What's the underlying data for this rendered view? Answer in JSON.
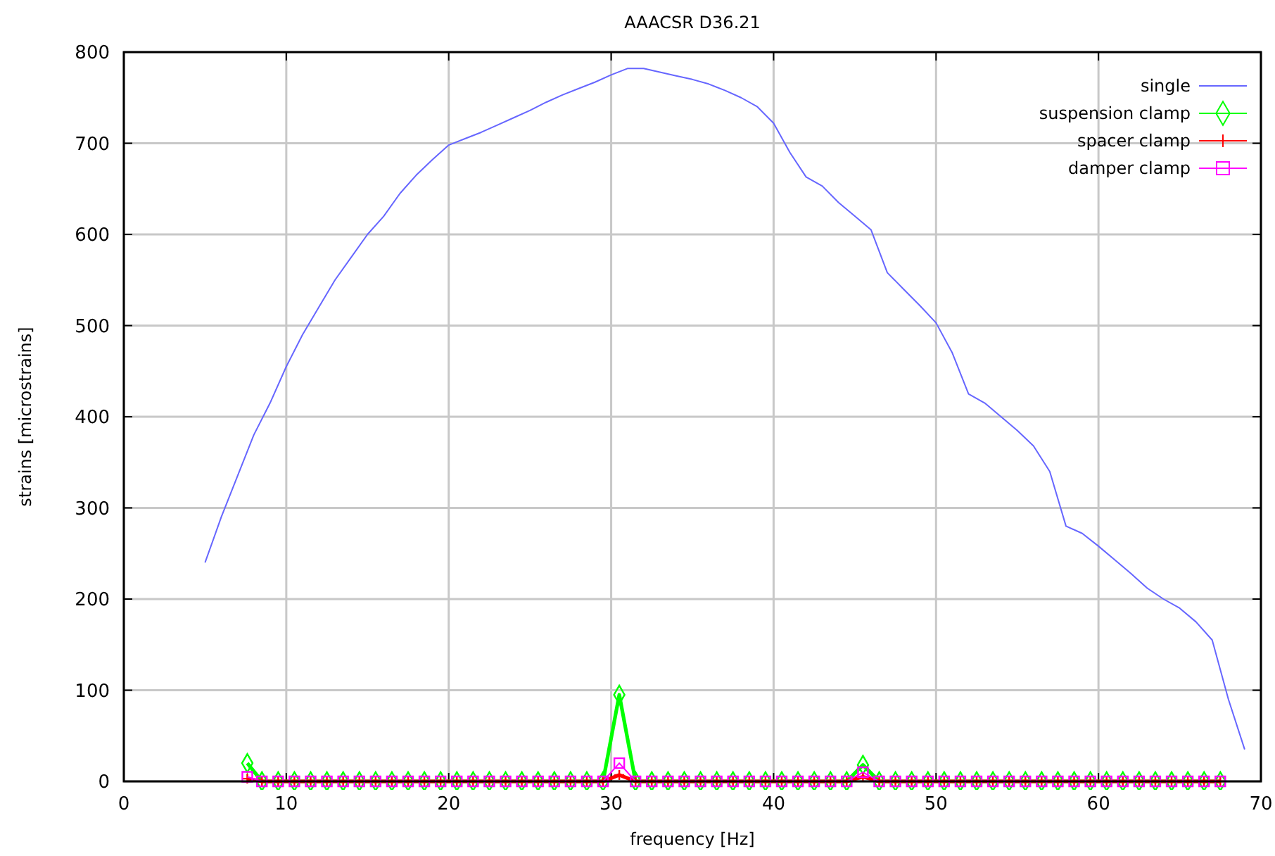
{
  "chart_data": {
    "type": "line",
    "title": "AAACSR D36.21",
    "xlabel": "frequency [Hz]",
    "ylabel": "strains [microstrains]",
    "xlim": [
      0,
      70
    ],
    "xticks": [
      0,
      10,
      20,
      30,
      40,
      50,
      60,
      70
    ],
    "ylim": [
      0,
      800
    ],
    "yticks": [
      0,
      100,
      200,
      300,
      400,
      500,
      600,
      700,
      800
    ],
    "grid": true,
    "legend": "top right",
    "series": [
      {
        "name": "single",
        "color": "#6666ff",
        "marker": "none",
        "x": [
          5,
          6,
          7,
          8,
          9,
          10,
          11,
          12,
          13,
          14,
          15,
          16,
          17,
          18,
          19,
          20,
          21,
          22,
          23,
          24,
          25,
          26,
          27,
          28,
          29,
          30,
          31,
          32,
          33,
          34,
          35,
          36,
          37,
          38,
          39,
          40,
          41,
          42,
          43,
          44,
          45,
          46,
          47,
          48,
          49,
          50,
          51,
          52,
          53,
          54,
          55,
          56,
          57,
          58,
          59,
          60,
          61,
          62,
          63,
          64,
          65,
          66,
          67,
          68,
          69
        ],
        "values": [
          240,
          290,
          335,
          380,
          415,
          455,
          490,
          520,
          550,
          575,
          600,
          620,
          645,
          665,
          682,
          698,
          705,
          712,
          720,
          728,
          736,
          745,
          753,
          760,
          767,
          775,
          782,
          782,
          778,
          774,
          770,
          765,
          758,
          750,
          740,
          722,
          690,
          663,
          653,
          635,
          620,
          605,
          558,
          540,
          522,
          503,
          470,
          425,
          415,
          400,
          385,
          368,
          340,
          280,
          272,
          258,
          243,
          228,
          212,
          200,
          190,
          175,
          155,
          90,
          35
        ]
      },
      {
        "name": "suspension clamp",
        "color": "#00ff00",
        "marker": "diamond",
        "x": [
          7.6,
          8.5,
          9.5,
          10.5,
          11.5,
          12.5,
          13.5,
          14.5,
          15.5,
          16.5,
          17.5,
          18.5,
          19.5,
          20.5,
          21.5,
          22.5,
          23.5,
          24.5,
          25.5,
          26.5,
          27.5,
          28.5,
          29.5,
          30.5,
          31.5,
          32.5,
          33.5,
          34.5,
          35.5,
          36.5,
          37.5,
          38.5,
          39.5,
          40.5,
          41.5,
          42.5,
          43.5,
          44.5,
          45.5,
          46.5,
          47.5,
          48.5,
          49.5,
          50.5,
          51.5,
          52.5,
          53.5,
          54.5,
          55.5,
          56.5,
          57.5,
          58.5,
          59.5,
          60.5,
          61.5,
          62.5,
          63.5,
          64.5,
          65.5,
          66.5,
          67.5
        ],
        "values": [
          20,
          0,
          0,
          0,
          0,
          0,
          0,
          0,
          0,
          0,
          0,
          0,
          0,
          0,
          0,
          0,
          0,
          0,
          0,
          0,
          0,
          0,
          0,
          95,
          0,
          0,
          0,
          0,
          0,
          0,
          0,
          0,
          0,
          0,
          0,
          0,
          0,
          0,
          18,
          0,
          0,
          0,
          0,
          0,
          0,
          0,
          0,
          0,
          0,
          0,
          0,
          0,
          0,
          0,
          0,
          0,
          0,
          0,
          0,
          0,
          0
        ]
      },
      {
        "name": "spacer clamp",
        "color": "#ff0000",
        "marker": "cross",
        "x": [
          7.6,
          8.5,
          9.5,
          10.5,
          11.5,
          12.5,
          13.5,
          14.5,
          15.5,
          16.5,
          17.5,
          18.5,
          19.5,
          20.5,
          21.5,
          22.5,
          23.5,
          24.5,
          25.5,
          26.5,
          27.5,
          28.5,
          29.5,
          30.5,
          31.5,
          32.5,
          33.5,
          34.5,
          35.5,
          36.5,
          37.5,
          38.5,
          39.5,
          40.5,
          41.5,
          42.5,
          43.5,
          44.5,
          45.5,
          46.5,
          47.5,
          48.5,
          49.5,
          50.5,
          51.5,
          52.5,
          53.5,
          54.5,
          55.5,
          56.5,
          57.5,
          58.5,
          59.5,
          60.5,
          61.5,
          62.5,
          63.5,
          64.5,
          65.5,
          66.5,
          67.5
        ],
        "values": [
          3,
          0,
          0,
          0,
          0,
          0,
          0,
          0,
          0,
          0,
          0,
          0,
          0,
          0,
          0,
          0,
          0,
          0,
          0,
          0,
          0,
          0,
          0,
          7,
          0,
          0,
          0,
          0,
          0,
          0,
          0,
          0,
          0,
          0,
          0,
          0,
          0,
          0,
          5,
          0,
          0,
          0,
          0,
          0,
          0,
          0,
          0,
          0,
          0,
          0,
          0,
          0,
          0,
          0,
          0,
          0,
          0,
          0,
          0,
          0,
          0
        ]
      },
      {
        "name": "damper clamp",
        "color": "#ff00ff",
        "marker": "square",
        "x": [
          7.6,
          8.5,
          9.5,
          10.5,
          11.5,
          12.5,
          13.5,
          14.5,
          15.5,
          16.5,
          17.5,
          18.5,
          19.5,
          20.5,
          21.5,
          22.5,
          23.5,
          24.5,
          25.5,
          26.5,
          27.5,
          28.5,
          29.5,
          30.5,
          31.5,
          32.5,
          33.5,
          34.5,
          35.5,
          36.5,
          37.5,
          38.5,
          39.5,
          40.5,
          41.5,
          42.5,
          43.5,
          44.5,
          45.5,
          46.5,
          47.5,
          48.5,
          49.5,
          50.5,
          51.5,
          52.5,
          53.5,
          54.5,
          55.5,
          56.5,
          57.5,
          58.5,
          59.5,
          60.5,
          61.5,
          62.5,
          63.5,
          64.5,
          65.5,
          66.5,
          67.5
        ],
        "values": [
          5,
          0,
          0,
          0,
          0,
          0,
          0,
          0,
          0,
          0,
          0,
          0,
          0,
          0,
          0,
          0,
          0,
          0,
          0,
          0,
          0,
          0,
          0,
          20,
          0,
          0,
          0,
          0,
          0,
          0,
          0,
          0,
          0,
          0,
          0,
          0,
          0,
          0,
          10,
          0,
          0,
          0,
          0,
          0,
          0,
          0,
          0,
          0,
          0,
          0,
          0,
          0,
          0,
          0,
          0,
          0,
          0,
          0,
          0,
          0,
          0
        ]
      }
    ]
  }
}
